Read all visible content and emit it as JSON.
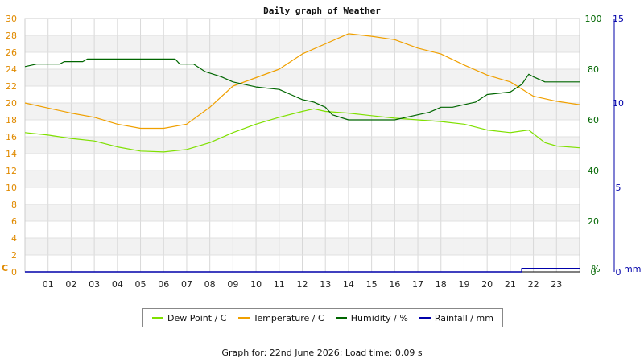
{
  "chart_data": {
    "type": "line",
    "title": "Daily graph of Weather",
    "axes": {
      "left": {
        "unit_label": "C",
        "range": [
          0,
          30
        ],
        "ticks": [
          "0",
          "2",
          "4",
          "6",
          "8",
          "10",
          "12",
          "14",
          "16",
          "18",
          "20",
          "22",
          "24",
          "26",
          "28",
          "30"
        ]
      },
      "right_humidity": {
        "unit_label": "%",
        "range": [
          0,
          100
        ],
        "ticks": [
          "0",
          "20",
          "40",
          "60",
          "80",
          "100"
        ]
      },
      "right_rainfall": {
        "unit_label": "mm",
        "range": [
          0,
          15
        ],
        "ticks": [
          "0",
          "5",
          "10",
          "15"
        ]
      },
      "x": {
        "range_hours": [
          0,
          24
        ],
        "ticks": [
          "01",
          "02",
          "03",
          "04",
          "05",
          "06",
          "07",
          "08",
          "09",
          "10",
          "11",
          "12",
          "13",
          "14",
          "15",
          "16",
          "17",
          "18",
          "19",
          "20",
          "21",
          "22",
          "23"
        ]
      }
    },
    "grid": true,
    "legend_position": "bottom",
    "series": [
      {
        "name": "Dew Point / C",
        "color": "#7fe000",
        "axis": "left",
        "points": [
          [
            0,
            16.5
          ],
          [
            1,
            16.2
          ],
          [
            2,
            15.8
          ],
          [
            3,
            15.5
          ],
          [
            4,
            14.8
          ],
          [
            5,
            14.3
          ],
          [
            6,
            14.2
          ],
          [
            7,
            14.5
          ],
          [
            8,
            15.3
          ],
          [
            9,
            16.5
          ],
          [
            10,
            17.5
          ],
          [
            11,
            18.3
          ],
          [
            12,
            19.0
          ],
          [
            12.5,
            19.3
          ],
          [
            13,
            19.0
          ],
          [
            14,
            18.8
          ],
          [
            15,
            18.5
          ],
          [
            16,
            18.2
          ],
          [
            17,
            18.0
          ],
          [
            18,
            17.8
          ],
          [
            19,
            17.5
          ],
          [
            20,
            16.8
          ],
          [
            21,
            16.5
          ],
          [
            21.8,
            16.8
          ],
          [
            22.5,
            15.3
          ],
          [
            23,
            14.9
          ],
          [
            24,
            14.7
          ]
        ]
      },
      {
        "name": "Temperature / C",
        "color": "#f0a000",
        "axis": "left",
        "points": [
          [
            0,
            20.0
          ],
          [
            1,
            19.4
          ],
          [
            2,
            18.8
          ],
          [
            3,
            18.3
          ],
          [
            4,
            17.5
          ],
          [
            5,
            17.0
          ],
          [
            6,
            17.0
          ],
          [
            7,
            17.5
          ],
          [
            8,
            19.5
          ],
          [
            9,
            22.0
          ],
          [
            10,
            23.0
          ],
          [
            11,
            24.0
          ],
          [
            12,
            25.8
          ],
          [
            13,
            27.0
          ],
          [
            14,
            28.2
          ],
          [
            15,
            27.9
          ],
          [
            16,
            27.5
          ],
          [
            17,
            26.5
          ],
          [
            18,
            25.8
          ],
          [
            19,
            24.5
          ],
          [
            20,
            23.3
          ],
          [
            21,
            22.5
          ],
          [
            22,
            20.8
          ],
          [
            23,
            20.2
          ],
          [
            24,
            19.8
          ]
        ]
      },
      {
        "name": "Humidity / %",
        "color": "#006600",
        "axis": "right_humidity",
        "points": [
          [
            0,
            81
          ],
          [
            0.5,
            82
          ],
          [
            1.5,
            82
          ],
          [
            1.7,
            83
          ],
          [
            2.5,
            83
          ],
          [
            2.7,
            84
          ],
          [
            6.5,
            84
          ],
          [
            6.7,
            82
          ],
          [
            7.3,
            82
          ],
          [
            7.8,
            79
          ],
          [
            8.5,
            77
          ],
          [
            9,
            75
          ],
          [
            10,
            73
          ],
          [
            11,
            72
          ],
          [
            11.5,
            70
          ],
          [
            12,
            68
          ],
          [
            12.5,
            67
          ],
          [
            13,
            65
          ],
          [
            13.3,
            62
          ],
          [
            14,
            60
          ],
          [
            14.5,
            60
          ],
          [
            15,
            60
          ],
          [
            15.5,
            60
          ],
          [
            16,
            60
          ],
          [
            16.5,
            61
          ],
          [
            17,
            62
          ],
          [
            17.5,
            63
          ],
          [
            18,
            65
          ],
          [
            18.5,
            65
          ],
          [
            19,
            66
          ],
          [
            19.5,
            67
          ],
          [
            20,
            70
          ],
          [
            21,
            71
          ],
          [
            21.5,
            74
          ],
          [
            21.8,
            78
          ],
          [
            22,
            77
          ],
          [
            22.5,
            75
          ],
          [
            23,
            75
          ],
          [
            24,
            75
          ]
        ]
      },
      {
        "name": "Rainfall / mm",
        "color": "#0000aa",
        "axis": "right_rainfall",
        "points": [
          [
            0,
            0
          ],
          [
            21.5,
            0
          ],
          [
            21.5,
            0.2
          ],
          [
            24,
            0.2
          ]
        ]
      }
    ]
  },
  "legend": [
    {
      "label": "Dew Point / C",
      "color": "#7fe000"
    },
    {
      "label": "Temperature / C",
      "color": "#f0a000"
    },
    {
      "label": "Humidity / %",
      "color": "#006600"
    },
    {
      "label": "Rainfall / mm",
      "color": "#0000aa"
    }
  ],
  "footer": {
    "text": "Graph for: 22nd June 2026; Load time: 0.09 s"
  }
}
